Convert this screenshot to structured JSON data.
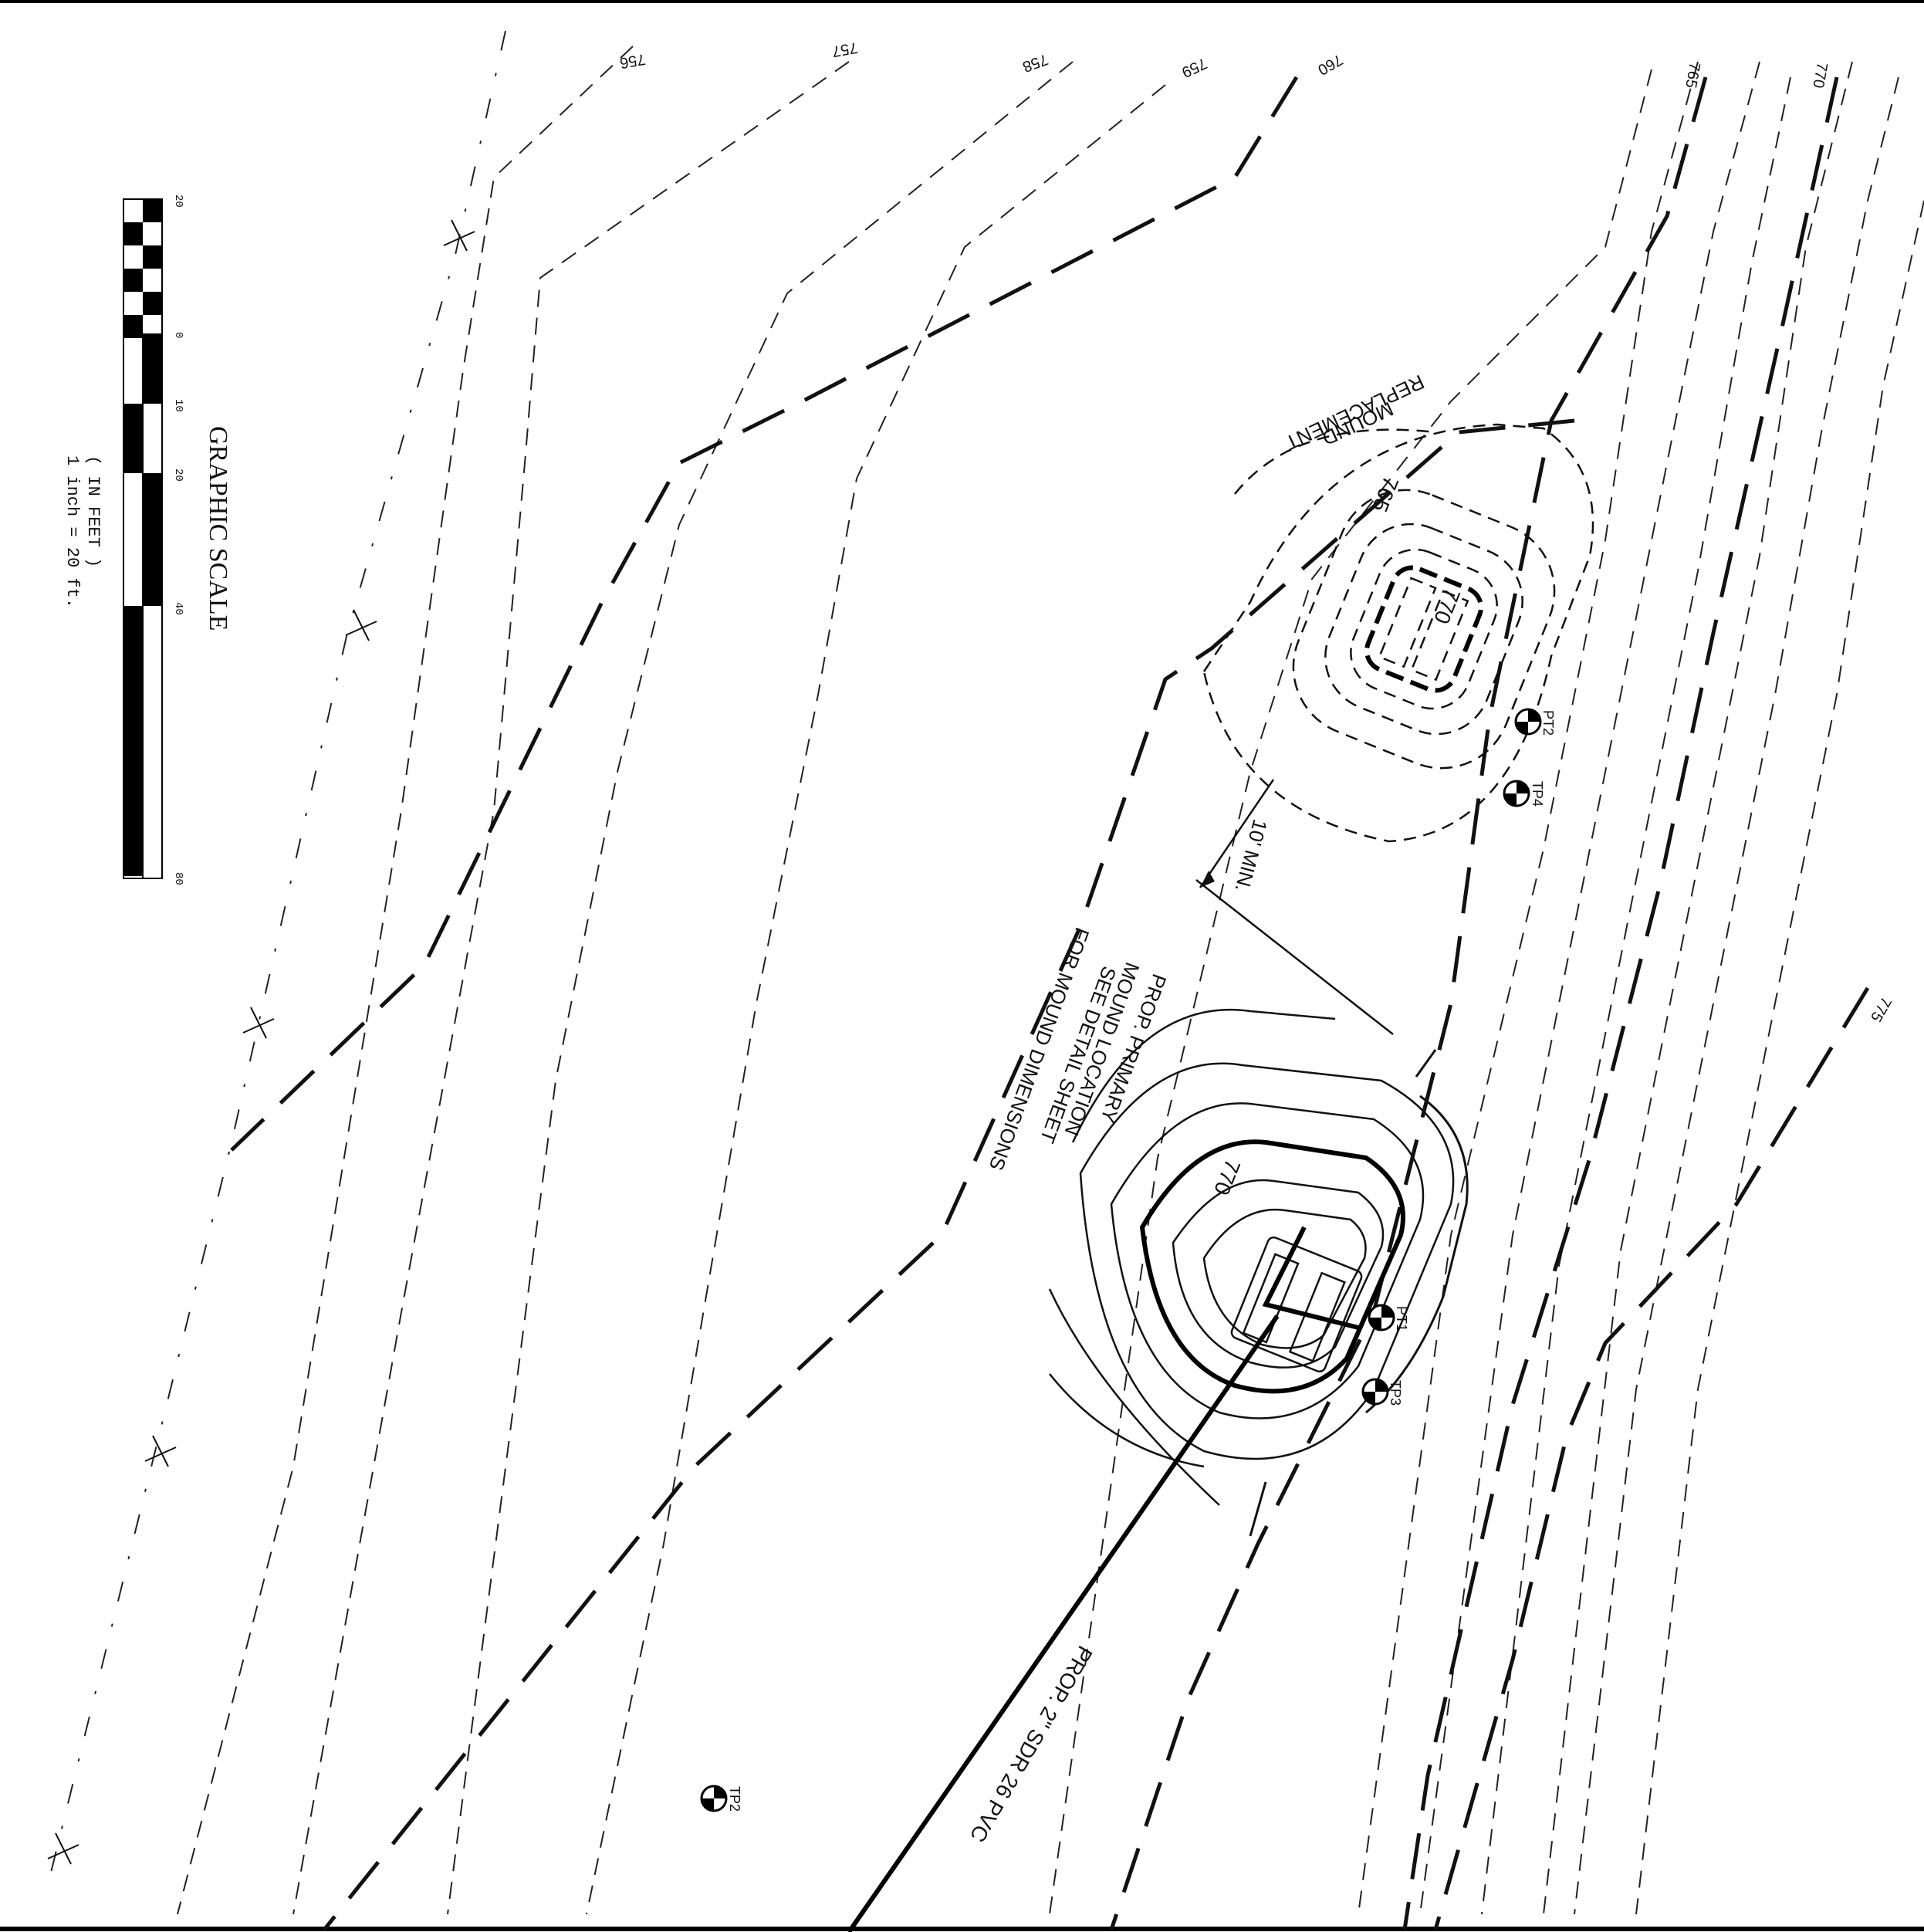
{
  "contour_labels": {
    "c756": "756",
    "c757": "757",
    "c758": "758",
    "c759": "759",
    "c760": "760",
    "c765_top": "765",
    "c770_top": "770",
    "c775": "775",
    "c765_repl": "765",
    "c770_repl": "770",
    "c770_primary": "770"
  },
  "replacement_mound": {
    "line1": "REPLACEMENT",
    "line2": "MOUND"
  },
  "primary_mound": {
    "line1": "PROP. PRIMARY",
    "line2": "MOUND LOCATION",
    "line3": "SEE DETAIL SHEET",
    "line4": "FOR MOUND DIMENSIONS"
  },
  "separation_label": "10' MIN.",
  "pipe_label": "PROP. 2\" SDR 26 PVC",
  "test_pits": {
    "pt1": "PT1",
    "pt2": "PT2",
    "tp2": "TP2",
    "tp3": "TP3",
    "tp4": "TP4"
  },
  "graphic_scale": {
    "title": "GRAPHIC SCALE",
    "units": "( IN FEET )",
    "ratio": "1 inch = 20 ft.",
    "ticks": [
      "20",
      "0",
      "10",
      "20",
      "40",
      "80"
    ]
  }
}
